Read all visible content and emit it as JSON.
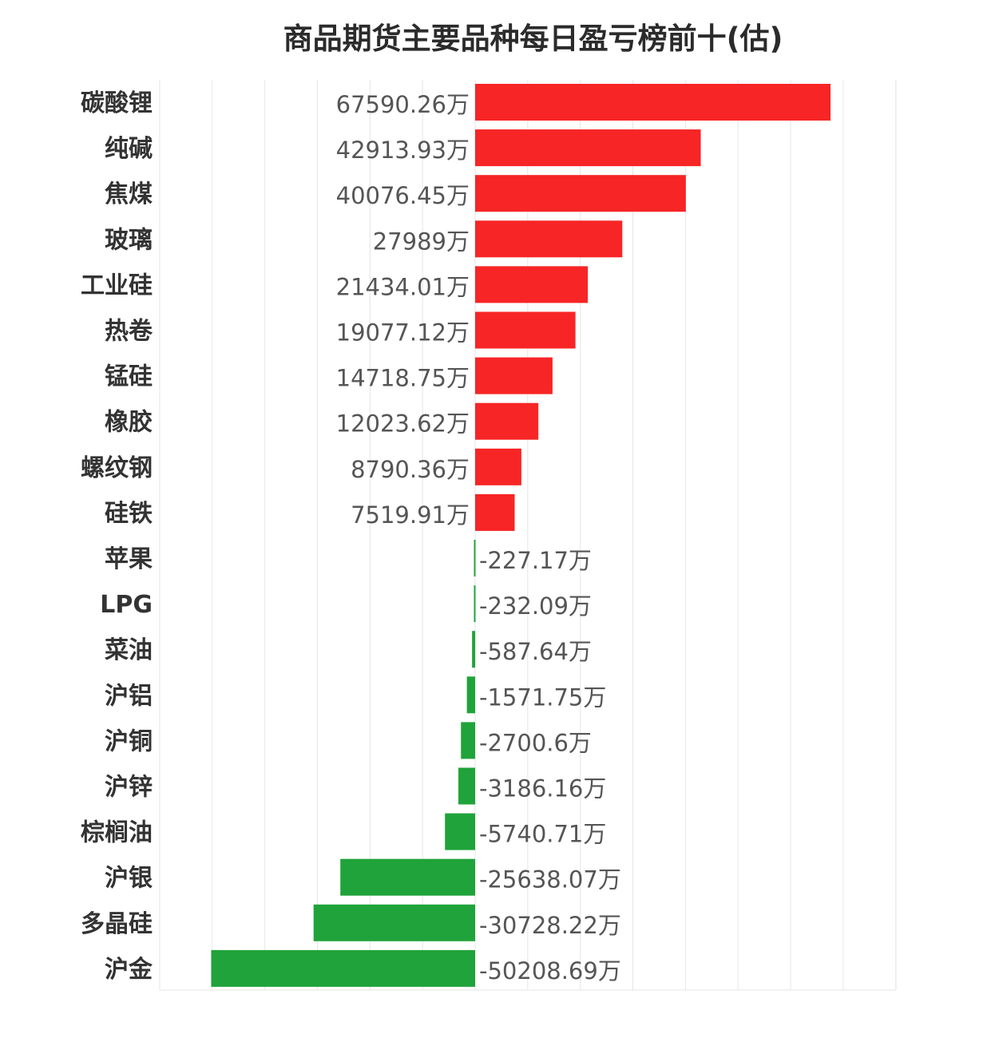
{
  "colors": {
    "positive": "#f72525",
    "negative": "#20a33a",
    "grid": "#e6e6e6",
    "label": "#333333",
    "value_label": "#555555"
  },
  "chart_data": {
    "type": "bar",
    "orientation": "horizontal",
    "title": "商品期货主要品种每日盈亏榜前十(估)",
    "unit_suffix": "万",
    "xlim": [
      -60000,
      80000
    ],
    "grid": true,
    "grid_step": 10000,
    "categories": [
      "碳酸锂",
      "纯碱",
      "焦煤",
      "玻璃",
      "工业硅",
      "热卷",
      "锰硅",
      "橡胶",
      "螺纹钢",
      "硅铁",
      "苹果",
      "LPG",
      "菜油",
      "沪铝",
      "沪铜",
      "沪锌",
      "棕榈油",
      "沪银",
      "多晶硅",
      "沪金"
    ],
    "values": [
      67590.26,
      42913.93,
      40076.45,
      27989,
      21434.01,
      19077.12,
      14718.75,
      12023.62,
      8790.36,
      7519.91,
      -227.17,
      -232.09,
      -587.64,
      -1571.75,
      -2700.6,
      -3186.16,
      -5740.71,
      -25638.07,
      -30728.22,
      -50208.69
    ],
    "value_labels": [
      "67590.26万",
      "42913.93万",
      "40076.45万",
      "27989万",
      "21434.01万",
      "19077.12万",
      "14718.75万",
      "12023.62万",
      "8790.36万",
      "7519.91万",
      "-227.17万",
      "-232.09万",
      "-587.64万",
      "-1571.75万",
      "-2700.6万",
      "-3186.16万",
      "-5740.71万",
      "-25638.07万",
      "-30728.22万",
      "-50208.69万"
    ]
  }
}
